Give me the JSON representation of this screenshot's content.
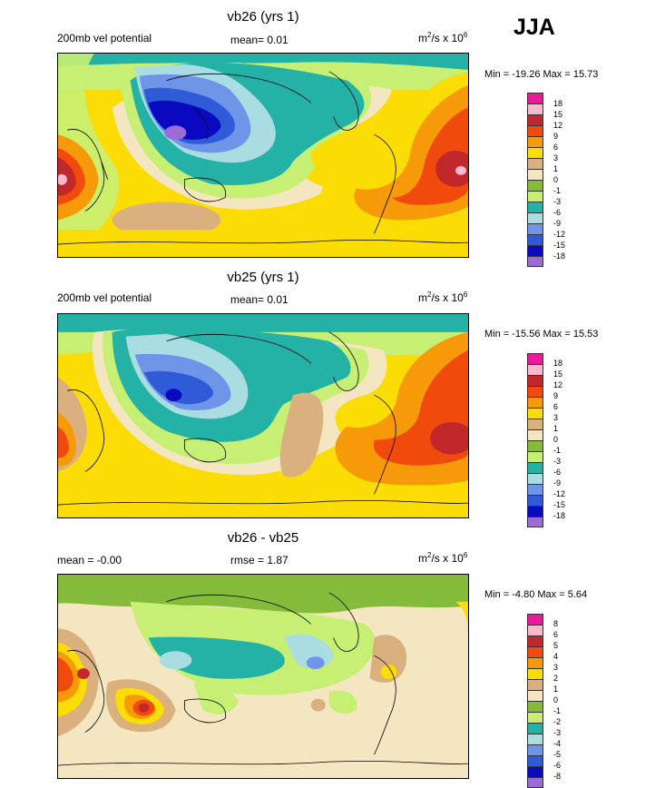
{
  "season": "JJA",
  "panels": [
    {
      "title": "vb26 (yrs 1)",
      "left_label": "200mb vel potential",
      "mean_label": "mean=  0.01",
      "units_base": "m",
      "units_sup1": "2",
      "units_mid": "/s x 10",
      "units_sup2": "6",
      "minmax": "Min = -19.26 Max =  15.73",
      "levels": [
        "18",
        "15",
        "12",
        "9",
        "6",
        "3",
        "1",
        "0",
        "-1",
        "-3",
        "-6",
        "-9",
        "-12",
        "-15",
        "-18"
      ],
      "colors": [
        "#f0189a",
        "#f7b9cc",
        "#c0282b",
        "#f04a0c",
        "#f79a0a",
        "#fbdc04",
        "#d9b07e",
        "#f4e6c0",
        "#85bb3a",
        "#c6ef74",
        "#25b2a6",
        "#aadde2",
        "#6f95e8",
        "#2f5bd9",
        "#0b09c0",
        "#9b6cd6"
      ]
    },
    {
      "title": "vb25 (yrs 1)",
      "left_label": "200mb vel potential",
      "mean_label": "mean=  0.01",
      "units_base": "m",
      "units_sup1": "2",
      "units_mid": "/s x 10",
      "units_sup2": "6",
      "minmax": "Min = -15.56 Max =  15.53",
      "levels": [
        "18",
        "15",
        "12",
        "9",
        "6",
        "3",
        "1",
        "0",
        "-1",
        "-3",
        "-6",
        "-9",
        "-12",
        "-15",
        "-18"
      ],
      "colors": [
        "#f0189a",
        "#f7b9cc",
        "#c0282b",
        "#f04a0c",
        "#f79a0a",
        "#fbdc04",
        "#d9b07e",
        "#f4e6c0",
        "#85bb3a",
        "#c6ef74",
        "#25b2a6",
        "#aadde2",
        "#6f95e8",
        "#2f5bd9",
        "#0b09c0",
        "#9b6cd6"
      ]
    },
    {
      "title": "vb26 - vb25",
      "left_label": "mean = -0.00",
      "mean_label": "rmse =  1.87",
      "units_base": "m",
      "units_sup1": "2",
      "units_mid": "/s x 10",
      "units_sup2": "6",
      "minmax": "Min = -4.80 Max =  5.64",
      "levels": [
        "8",
        "6",
        "5",
        "4",
        "3",
        "2",
        "1",
        "0",
        "-1",
        "-2",
        "-3",
        "-4",
        "-5",
        "-6",
        "-8"
      ],
      "colors": [
        "#f0189a",
        "#f7b9cc",
        "#c0282b",
        "#f04a0c",
        "#f79a0a",
        "#fbdc04",
        "#d9b07e",
        "#f4e6c0",
        "#85bb3a",
        "#c6ef74",
        "#25b2a6",
        "#aadde2",
        "#6f95e8",
        "#2f5bd9",
        "#0b09c0",
        "#9b6cd6"
      ]
    }
  ],
  "chart_data": [
    {
      "type": "heatmap",
      "title": "vb26 (yrs 1)",
      "field": "200mb vel potential",
      "units": "m2/s x 10^6",
      "mean": 0.01,
      "min": -19.26,
      "max": 15.73,
      "contour_levels": [
        -18,
        -15,
        -12,
        -9,
        -6,
        -3,
        -1,
        0,
        1,
        3,
        6,
        9,
        12,
        15,
        18
      ]
    },
    {
      "type": "heatmap",
      "title": "vb25 (yrs 1)",
      "field": "200mb vel potential",
      "units": "m2/s x 10^6",
      "mean": 0.01,
      "min": -15.56,
      "max": 15.53,
      "contour_levels": [
        -18,
        -15,
        -12,
        -9,
        -6,
        -3,
        -1,
        0,
        1,
        3,
        6,
        9,
        12,
        15,
        18
      ]
    },
    {
      "type": "heatmap",
      "title": "vb26 - vb25",
      "units": "m2/s x 10^6",
      "mean": -0.0,
      "rmse": 1.87,
      "min": -4.8,
      "max": 5.64,
      "contour_levels": [
        -8,
        -6,
        -5,
        -4,
        -3,
        -2,
        -1,
        0,
        1,
        2,
        3,
        4,
        5,
        6,
        8
      ]
    }
  ]
}
